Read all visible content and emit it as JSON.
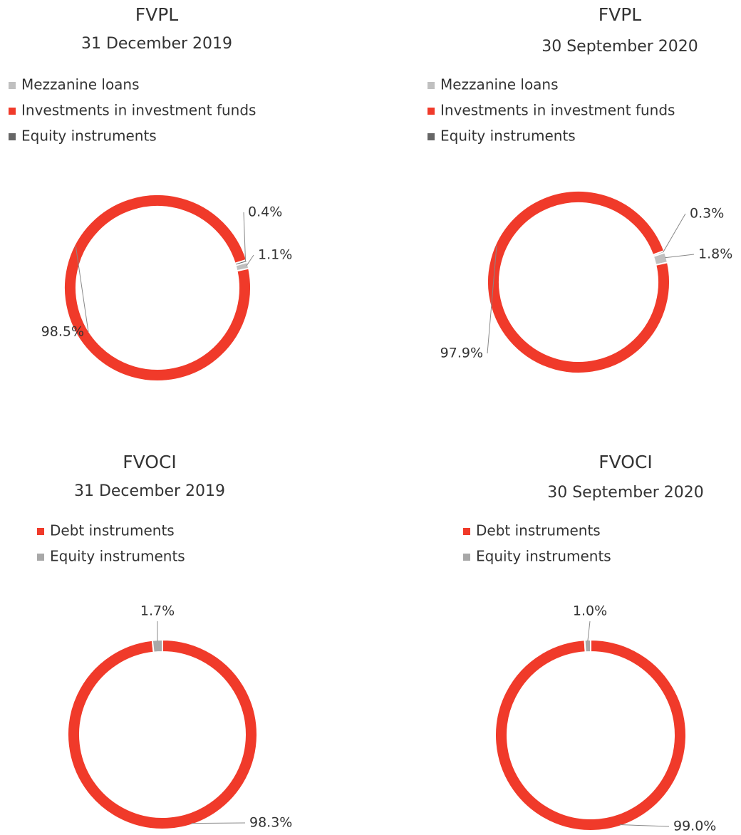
{
  "chart_data": [
    {
      "type": "donut",
      "title": "FVPL",
      "subtitle": "31 December 2019",
      "categories": [
        "Mezzanine loans",
        "Investments in investment funds",
        "Equity instruments"
      ],
      "values": [
        1.1,
        98.5,
        0.4
      ],
      "value_labels": [
        "1.1%",
        "98.5%",
        "0.4%"
      ],
      "colors": [
        "#c0c0c0",
        "#f03a2a",
        "#666666"
      ]
    },
    {
      "type": "donut",
      "title": "FVPL",
      "subtitle": "30 September 2020",
      "categories": [
        "Mezzanine loans",
        "Investments in investment funds",
        "Equity instruments"
      ],
      "values": [
        1.8,
        97.9,
        0.3
      ],
      "value_labels": [
        "1.8%",
        "97.9%",
        "0.3%"
      ],
      "colors": [
        "#c0c0c0",
        "#f03a2a",
        "#666666"
      ]
    },
    {
      "type": "donut",
      "title": "FVOCI",
      "subtitle": "31 December 2019",
      "categories": [
        "Debt instruments",
        "Equity instruments"
      ],
      "values": [
        98.3,
        1.7
      ],
      "value_labels": [
        "98.3%",
        "1.7%"
      ],
      "colors": [
        "#f03a2a",
        "#a8a8a8"
      ]
    },
    {
      "type": "donut",
      "title": "FVOCI",
      "subtitle": "30 September 2020",
      "categories": [
        "Debt instruments",
        "Equity instruments"
      ],
      "values": [
        99.0,
        1.0
      ],
      "value_labels": [
        "99.0%",
        "1.0%"
      ],
      "colors": [
        "#f03a2a",
        "#a8a8a8"
      ]
    }
  ]
}
